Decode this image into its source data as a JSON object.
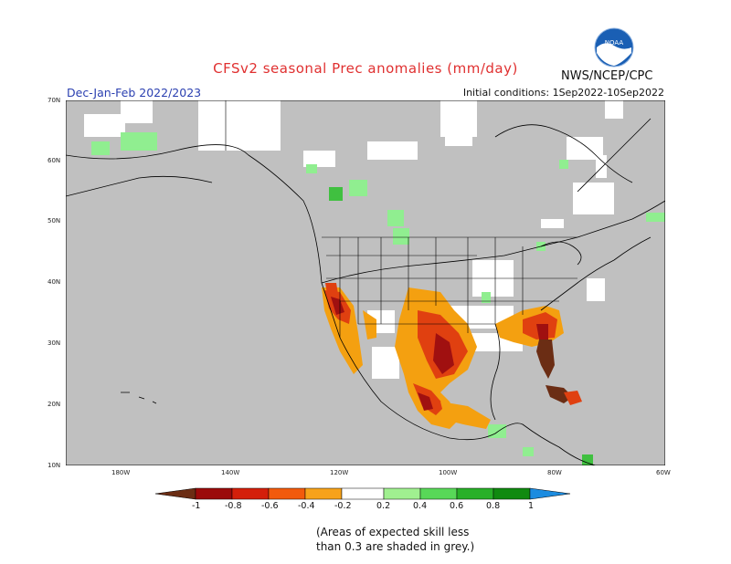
{
  "header": {
    "title": "CFSv2 seasonal Prec anomalies (mm/day)",
    "season": "Dec-Jan-Feb 2022/2023",
    "initial_conditions": "Initial conditions: 1Sep2022-10Sep2022",
    "agency": "NWS/NCEP/CPC",
    "logo_text": "NOAA"
  },
  "map": {
    "lat_labels": [
      "70N",
      "60N",
      "50N",
      "40N",
      "30N",
      "20N",
      "10N"
    ],
    "lon_labels": [
      "180W",
      "140W",
      "120W",
      "100W",
      "80W",
      "60W"
    ],
    "colors": {
      "masked_grey": "#c0c0c0",
      "no_signal_white": "#ffffff",
      "dry_strong": "#a01010",
      "dry_moderate": "#e04010",
      "dry_weak": "#f4a010",
      "wet_weak": "#90ee90",
      "wet_moderate": "#40c040",
      "ocean_outline": "#000000"
    }
  },
  "legend": {
    "labels": [
      "-1",
      "-0.8",
      "-0.6",
      "-0.4",
      "-0.2",
      "0.2",
      "0.4",
      "0.6",
      "0.8",
      "1"
    ],
    "colors": [
      "#6b2d14",
      "#9b0a0a",
      "#d41f0a",
      "#f25a0c",
      "#f7a21a",
      "#ffffff",
      "#a0f090",
      "#58d858",
      "#28b028",
      "#108a10",
      "#1c8ce0"
    ]
  },
  "note": {
    "line1": "(Areas of expected skill less",
    "line2": "than 0.3 are shaded in grey.)"
  }
}
